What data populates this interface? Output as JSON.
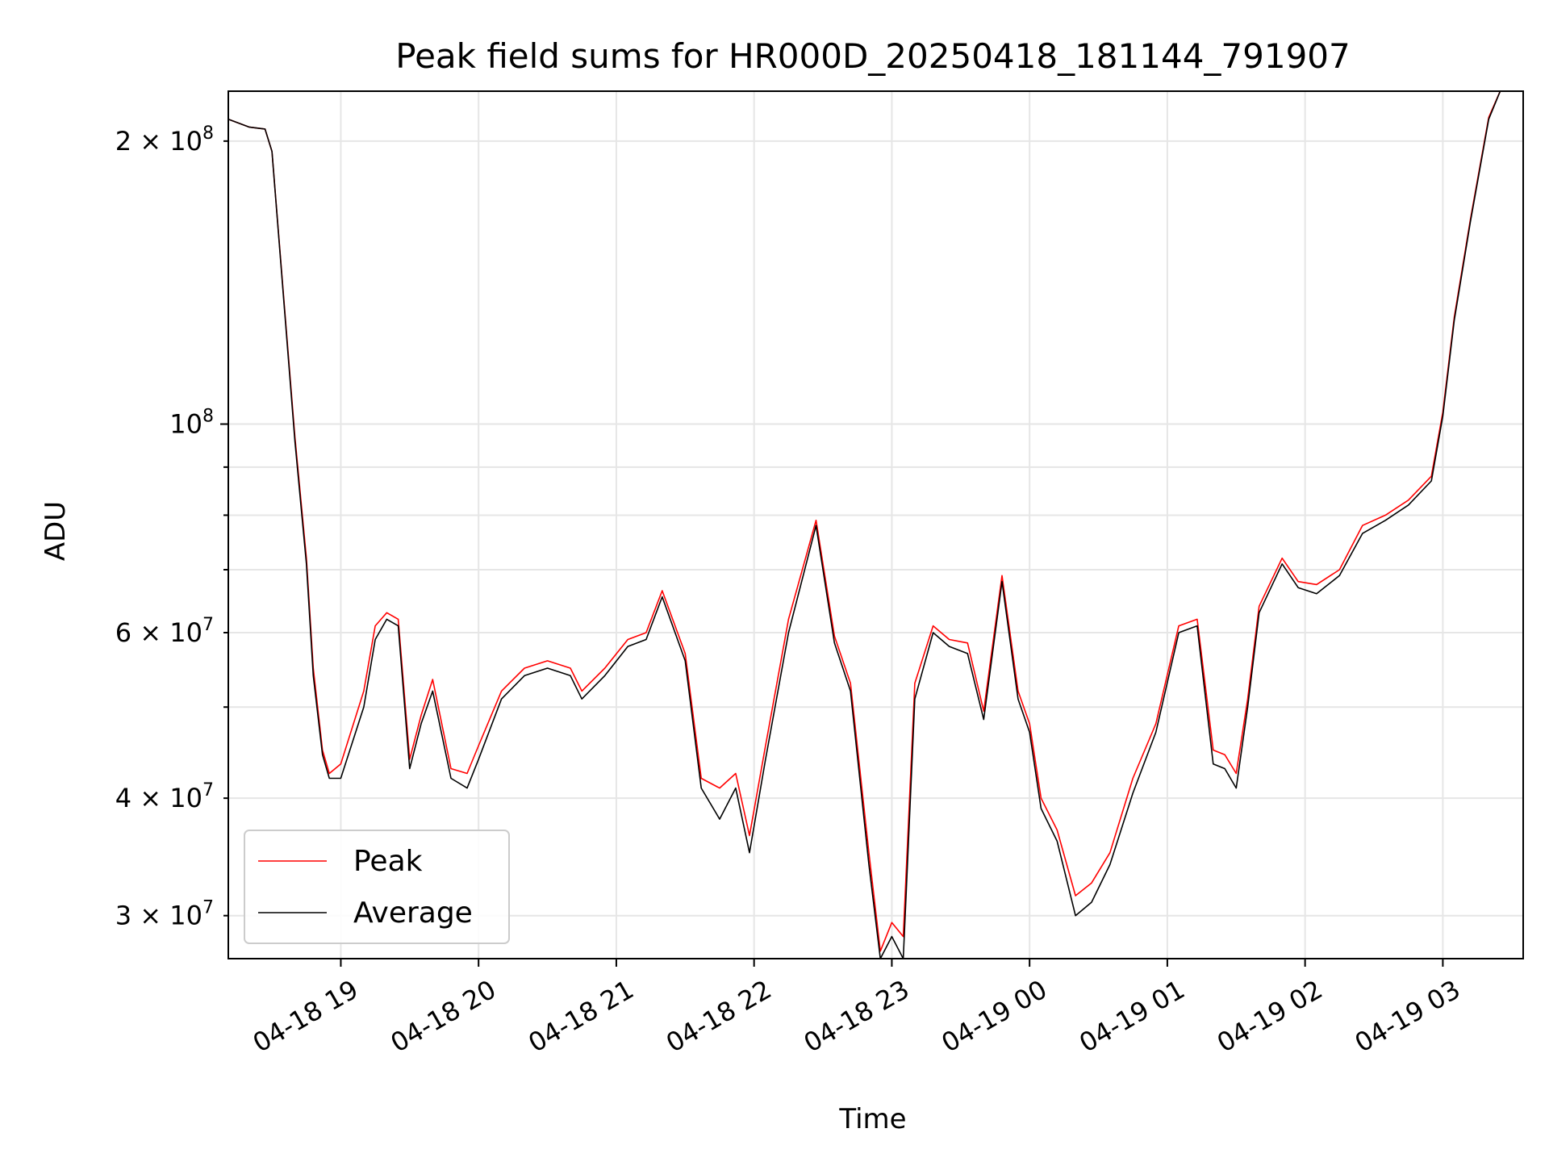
{
  "chart_data": {
    "type": "line",
    "title": "Peak field sums for HR000D_20250418_181144_791907",
    "xlabel": "Time",
    "ylabel": "ADU",
    "yscale": "log",
    "ylim": [
      27000000,
      226000000
    ],
    "xlim": [
      "2025-04-18 18:11",
      "2025-04-19 03:35"
    ],
    "x_tick_labels": [
      "04-18 19",
      "04-18 20",
      "04-18 21",
      "04-18 22",
      "04-18 23",
      "04-19 00",
      "04-19 01",
      "04-19 02",
      "04-19 03"
    ],
    "x_ticks": [
      "2025-04-18 19:00",
      "2025-04-18 20:00",
      "2025-04-18 21:00",
      "2025-04-18 22:00",
      "2025-04-18 23:00",
      "2025-04-19 00:00",
      "2025-04-19 01:00",
      "2025-04-19 02:00",
      "2025-04-19 03:00"
    ],
    "y_tick_labels": [
      {
        "value": 200000000,
        "mantissa": "2",
        "exp": "8"
      },
      {
        "value": 100000000,
        "mantissa": "",
        "exp": "8"
      },
      {
        "value": 60000000,
        "mantissa": "6",
        "exp": "7"
      },
      {
        "value": 40000000,
        "mantissa": "4",
        "exp": "7"
      },
      {
        "value": 30000000,
        "mantissa": "3",
        "exp": "7"
      }
    ],
    "y_minor_ticks": [
      30000000,
      40000000,
      50000000,
      60000000,
      70000000,
      80000000,
      90000000,
      200000000
    ],
    "grid": true,
    "legend_position": "lower-left",
    "series": [
      {
        "name": "Peak",
        "color": "#ff0000",
        "x": [
          "2025-04-18 18:11",
          "2025-04-18 18:20",
          "2025-04-18 18:27",
          "2025-04-18 18:30",
          "2025-04-18 18:40",
          "2025-04-18 18:45",
          "2025-04-18 18:48",
          "2025-04-18 18:52",
          "2025-04-18 18:55",
          "2025-04-18 19:00",
          "2025-04-18 19:10",
          "2025-04-18 19:15",
          "2025-04-18 19:20",
          "2025-04-18 19:25",
          "2025-04-18 19:30",
          "2025-04-18 19:35",
          "2025-04-18 19:40",
          "2025-04-18 19:48",
          "2025-04-18 19:55",
          "2025-04-18 20:00",
          "2025-04-18 20:10",
          "2025-04-18 20:20",
          "2025-04-18 20:30",
          "2025-04-18 20:40",
          "2025-04-18 20:45",
          "2025-04-18 20:55",
          "2025-04-18 21:05",
          "2025-04-18 21:13",
          "2025-04-18 21:20",
          "2025-04-18 21:30",
          "2025-04-18 21:37",
          "2025-04-18 21:45",
          "2025-04-18 21:52",
          "2025-04-18 21:58",
          "2025-04-18 22:05",
          "2025-04-18 22:15",
          "2025-04-18 22:27",
          "2025-04-18 22:35",
          "2025-04-18 22:42",
          "2025-04-18 22:50",
          "2025-04-18 22:55",
          "2025-04-18 23:00",
          "2025-04-18 23:05",
          "2025-04-18 23:10",
          "2025-04-18 23:18",
          "2025-04-18 23:25",
          "2025-04-18 23:33",
          "2025-04-18 23:40",
          "2025-04-18 23:48",
          "2025-04-18 23:55",
          "2025-04-19 00:00",
          "2025-04-19 00:05",
          "2025-04-19 00:12",
          "2025-04-19 00:20",
          "2025-04-19 00:27",
          "2025-04-19 00:35",
          "2025-04-19 00:45",
          "2025-04-19 00:55",
          "2025-04-19 01:05",
          "2025-04-19 01:13",
          "2025-04-19 01:20",
          "2025-04-19 01:25",
          "2025-04-19 01:30",
          "2025-04-19 01:35",
          "2025-04-19 01:40",
          "2025-04-19 01:50",
          "2025-04-19 01:57",
          "2025-04-19 02:05",
          "2025-04-19 02:15",
          "2025-04-19 02:25",
          "2025-04-19 02:35",
          "2025-04-19 02:45",
          "2025-04-19 02:55",
          "2025-04-19 03:00",
          "2025-04-19 03:05",
          "2025-04-19 03:12",
          "2025-04-19 03:20",
          "2025-04-19 03:25",
          "2025-04-19 03:30",
          "2025-04-19 03:35"
        ],
        "y": [
          211000000,
          207000000,
          206000000,
          195000000,
          97000000,
          72000000,
          55000000,
          45000000,
          42500000,
          43500000,
          52000000,
          61000000,
          63000000,
          62000000,
          44000000,
          49000000,
          53500000,
          43000000,
          42500000,
          45500000,
          52000000,
          55000000,
          56000000,
          55000000,
          52000000,
          55000000,
          59000000,
          60000000,
          66500000,
          57000000,
          42000000,
          41000000,
          42500000,
          36500000,
          45500000,
          62000000,
          79000000,
          59500000,
          53000000,
          35000000,
          27500000,
          29500000,
          28500000,
          53000000,
          61000000,
          59000000,
          58500000,
          49500000,
          69000000,
          52000000,
          48000000,
          40000000,
          37000000,
          31500000,
          32500000,
          35000000,
          42000000,
          48000000,
          61000000,
          62000000,
          45000000,
          44500000,
          42500000,
          51000000,
          64000000,
          72000000,
          68000000,
          67500000,
          70000000,
          78000000,
          80000000,
          83000000,
          88000000,
          103000000,
          130000000,
          165000000,
          212000000,
          226000000,
          226000000,
          226000000
        ]
      },
      {
        "name": "Average",
        "color": "#000000",
        "x": [
          "2025-04-18 18:11",
          "2025-04-18 18:20",
          "2025-04-18 18:27",
          "2025-04-18 18:30",
          "2025-04-18 18:40",
          "2025-04-18 18:45",
          "2025-04-18 18:48",
          "2025-04-18 18:52",
          "2025-04-18 18:55",
          "2025-04-18 19:00",
          "2025-04-18 19:10",
          "2025-04-18 19:15",
          "2025-04-18 19:20",
          "2025-04-18 19:25",
          "2025-04-18 19:30",
          "2025-04-18 19:35",
          "2025-04-18 19:40",
          "2025-04-18 19:48",
          "2025-04-18 19:55",
          "2025-04-18 20:00",
          "2025-04-18 20:10",
          "2025-04-18 20:20",
          "2025-04-18 20:30",
          "2025-04-18 20:40",
          "2025-04-18 20:45",
          "2025-04-18 20:55",
          "2025-04-18 21:05",
          "2025-04-18 21:13",
          "2025-04-18 21:20",
          "2025-04-18 21:30",
          "2025-04-18 21:37",
          "2025-04-18 21:45",
          "2025-04-18 21:52",
          "2025-04-18 21:58",
          "2025-04-18 22:05",
          "2025-04-18 22:15",
          "2025-04-18 22:27",
          "2025-04-18 22:35",
          "2025-04-18 22:42",
          "2025-04-18 22:50",
          "2025-04-18 22:55",
          "2025-04-18 23:00",
          "2025-04-18 23:05",
          "2025-04-18 23:10",
          "2025-04-18 23:18",
          "2025-04-18 23:25",
          "2025-04-18 23:33",
          "2025-04-18 23:40",
          "2025-04-18 23:48",
          "2025-04-18 23:55",
          "2025-04-19 00:00",
          "2025-04-19 00:05",
          "2025-04-19 00:12",
          "2025-04-19 00:20",
          "2025-04-19 00:27",
          "2025-04-19 00:35",
          "2025-04-19 00:45",
          "2025-04-19 00:55",
          "2025-04-19 01:05",
          "2025-04-19 01:13",
          "2025-04-19 01:20",
          "2025-04-19 01:25",
          "2025-04-19 01:30",
          "2025-04-19 01:35",
          "2025-04-19 01:40",
          "2025-04-19 01:50",
          "2025-04-19 01:57",
          "2025-04-19 02:05",
          "2025-04-19 02:15",
          "2025-04-19 02:25",
          "2025-04-19 02:35",
          "2025-04-19 02:45",
          "2025-04-19 02:55",
          "2025-04-19 03:00",
          "2025-04-19 03:05",
          "2025-04-19 03:12",
          "2025-04-19 03:20",
          "2025-04-19 03:25",
          "2025-04-19 03:30",
          "2025-04-19 03:35"
        ],
        "y": [
          211000000,
          207000000,
          206000000,
          195000000,
          96000000,
          71000000,
          54000000,
          44500000,
          42000000,
          42000000,
          50000000,
          59000000,
          62000000,
          61000000,
          43000000,
          48000000,
          52000000,
          42000000,
          41000000,
          44000000,
          51000000,
          54000000,
          55000000,
          54000000,
          51000000,
          54000000,
          58000000,
          59000000,
          65500000,
          56000000,
          41000000,
          38000000,
          41000000,
          35000000,
          44000000,
          60000000,
          78000000,
          58500000,
          52000000,
          34000000,
          27000000,
          28500000,
          27000000,
          51000000,
          60000000,
          58000000,
          57000000,
          48500000,
          68000000,
          51000000,
          47000000,
          39000000,
          36000000,
          30000000,
          31000000,
          34000000,
          40500000,
          47000000,
          60000000,
          61000000,
          43500000,
          43000000,
          41000000,
          50000000,
          63000000,
          71000000,
          67000000,
          66000000,
          69000000,
          76500000,
          79000000,
          82000000,
          87000000,
          102000000,
          129000000,
          164000000,
          211000000,
          226000000,
          226000000,
          226000000
        ]
      }
    ]
  }
}
